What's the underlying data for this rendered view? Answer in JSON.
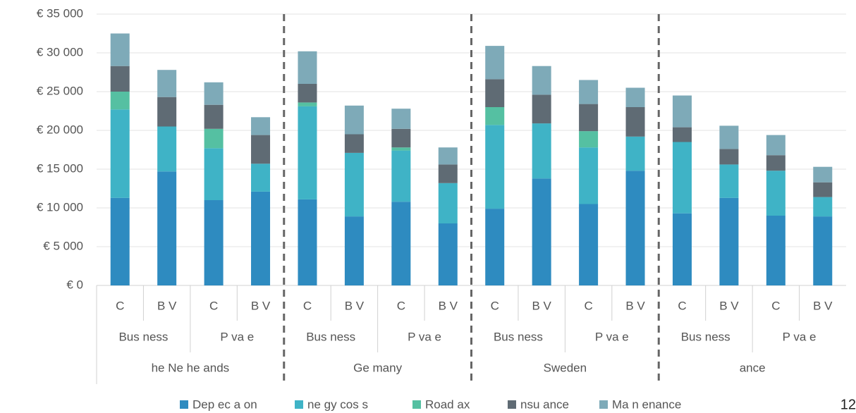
{
  "chart_data": {
    "type": "stacked_bar",
    "categories": [
      "C",
      "B V",
      "C",
      "B V",
      "C",
      "B V",
      "C",
      "B V",
      "C",
      "B V",
      "C",
      "B V",
      "C",
      "B V",
      "C",
      "B V"
    ],
    "category_groups": [
      "Bus ness",
      "P va e",
      "Bus ness",
      "P va e",
      "Bus ness",
      "P va e",
      "Bus ness",
      "P va e"
    ],
    "countries": [
      "he Ne he ands",
      "Ge many",
      "Sweden",
      "ance"
    ],
    "series": [
      {
        "name": "Dep ec a on",
        "color": "#2e8bc0",
        "values": [
          11300,
          14700,
          11000,
          12100,
          11100,
          8900,
          10800,
          8000,
          9900,
          13800,
          10500,
          14800,
          9300,
          11300,
          9000,
          8900
        ]
      },
      {
        "name": "ne gy cos s",
        "color": "#3fb3c6",
        "values": [
          11400,
          5800,
          6700,
          3600,
          12000,
          8200,
          6600,
          5200,
          10800,
          7100,
          7300,
          4400,
          9200,
          4300,
          5800,
          2500
        ]
      },
      {
        "name": "Road ax",
        "color": "#55c0a2",
        "values": [
          2300,
          0,
          2500,
          0,
          500,
          0,
          400,
          0,
          2300,
          0,
          2100,
          0,
          0,
          0,
          0,
          0
        ]
      },
      {
        "name": "nsu ance",
        "color": "#5f6b74",
        "values": [
          3300,
          3800,
          3100,
          3700,
          2400,
          2400,
          2400,
          2400,
          3600,
          3700,
          3500,
          3800,
          1900,
          2000,
          2000,
          1900
        ]
      },
      {
        "name": "Ma n enance",
        "color": "#7eaab8",
        "values": [
          4200,
          3500,
          2900,
          2300,
          4200,
          3700,
          2600,
          2200,
          4300,
          3700,
          3100,
          2500,
          4100,
          3000,
          2600,
          2000
        ]
      }
    ],
    "ylim": [
      0,
      35000
    ],
    "yticks": [
      {
        "value": 0,
        "label": "€ 0"
      },
      {
        "value": 5000,
        "label": "€ 5 000"
      },
      {
        "value": 10000,
        "label": "€ 10 000"
      },
      {
        "value": 15000,
        "label": "€ 15 000"
      },
      {
        "value": 20000,
        "label": "€ 20 000"
      },
      {
        "value": 25000,
        "label": "€ 25 000"
      },
      {
        "value": 30000,
        "label": "€ 30 000"
      },
      {
        "value": 35000,
        "label": "€ 35 000"
      }
    ],
    "grid": true,
    "legend": "bottom",
    "page_number": "12"
  }
}
